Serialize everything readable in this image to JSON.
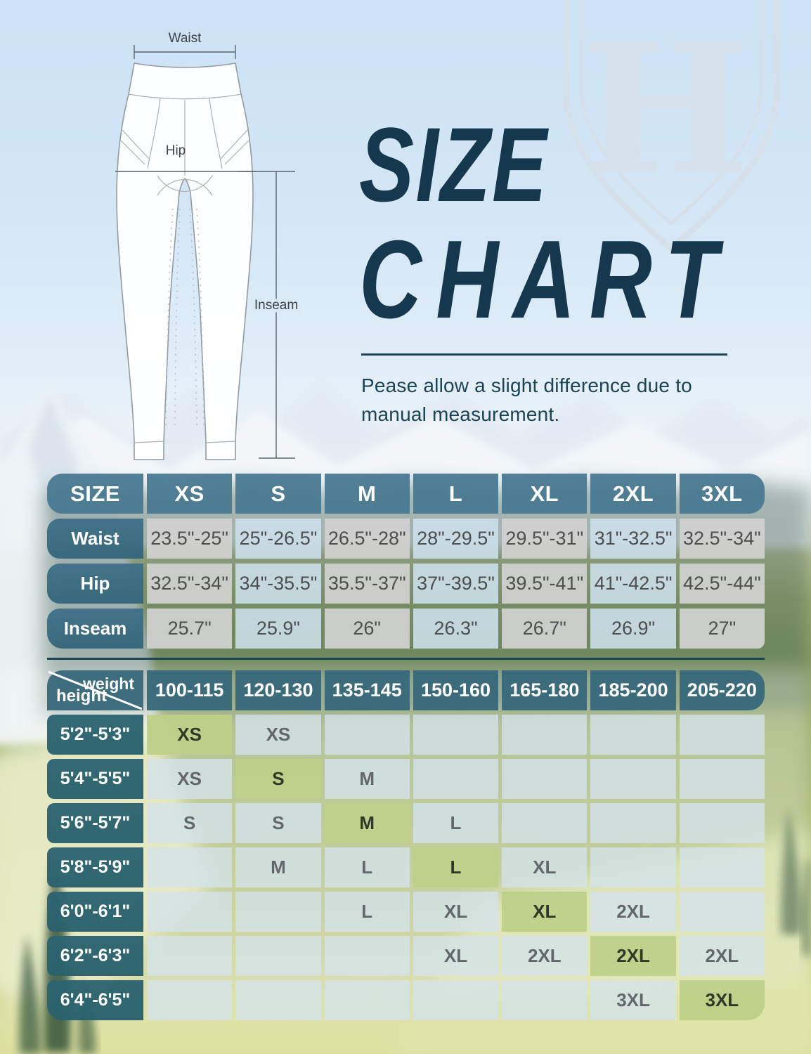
{
  "logo": {
    "letter": "H"
  },
  "diagram": {
    "waist_label": "Waist",
    "hip_label": "Hip",
    "inseam_label": "Inseam"
  },
  "title": {
    "line1": "SIZE",
    "line2": "CHART"
  },
  "note": "Pease allow a slight difference due to manual measurement.",
  "size_table": {
    "header": [
      "SIZE",
      "XS",
      "S",
      "M",
      "L",
      "XL",
      "2XL",
      "3XL"
    ],
    "rows": [
      {
        "label": "Waist",
        "values": [
          "23.5\"-25\"",
          "25\"-26.5\"",
          "26.5\"-28\"",
          "28\"-29.5\"",
          "29.5\"-31\"",
          "31\"-32.5\"",
          "32.5\"-34\""
        ]
      },
      {
        "label": "Hip",
        "values": [
          "32.5\"-34\"",
          "34\"-35.5\"",
          "35.5\"-37\"",
          "37\"-39.5\"",
          "39.5\"-41\"",
          "41\"-42.5\"",
          "42.5\"-44\""
        ]
      },
      {
        "label": "Inseam",
        "values": [
          "25.7\"",
          "25.9\"",
          "26\"",
          "26.3\"",
          "26.7\"",
          "26.9\"",
          "27\""
        ]
      }
    ]
  },
  "fit_table": {
    "corner_top": "weight",
    "corner_bottom": "height",
    "weights": [
      "100-115",
      "120-130",
      "135-145",
      "150-160",
      "165-180",
      "185-200",
      "205-220"
    ],
    "rows": [
      {
        "height": "5'2\"-5'3\"",
        "cells": [
          {
            "v": "XS",
            "hl": true
          },
          {
            "v": "XS"
          },
          {},
          {},
          {},
          {},
          {}
        ]
      },
      {
        "height": "5'4\"-5'5\"",
        "cells": [
          {
            "v": "XS"
          },
          {
            "v": "S",
            "hl": true
          },
          {
            "v": "M"
          },
          {},
          {},
          {},
          {}
        ]
      },
      {
        "height": "5'6\"-5'7\"",
        "cells": [
          {
            "v": "S"
          },
          {
            "v": "S"
          },
          {
            "v": "M",
            "hl": true
          },
          {
            "v": "L"
          },
          {},
          {},
          {}
        ]
      },
      {
        "height": "5'8\"-5'9\"",
        "cells": [
          {},
          {
            "v": "M"
          },
          {
            "v": "L"
          },
          {
            "v": "L",
            "hl": true
          },
          {
            "v": "XL"
          },
          {},
          {}
        ]
      },
      {
        "height": "6'0\"-6'1\"",
        "cells": [
          {},
          {},
          {
            "v": "L"
          },
          {
            "v": "XL"
          },
          {
            "v": "XL",
            "hl": true
          },
          {
            "v": "2XL"
          },
          {}
        ]
      },
      {
        "height": "6'2\"-6'3\"",
        "cells": [
          {},
          {},
          {},
          {
            "v": "XL"
          },
          {
            "v": "2XL"
          },
          {
            "v": "2XL",
            "hl": true
          },
          {
            "v": "2XL"
          }
        ]
      },
      {
        "height": "6'4\"-6'5\"",
        "cells": [
          {},
          {},
          {},
          {},
          {},
          {
            "v": "3XL"
          },
          {
            "v": "3XL",
            "hl": true
          }
        ]
      }
    ]
  },
  "colors": {
    "title_navy": "#16384e",
    "text_navy": "#1d4357",
    "size_header_teal": "#47788f",
    "size_label_teal": "#3a6c84",
    "fit_header_teal": "#37687a",
    "fit_label_teal": "#2c6171",
    "cell_gray": "#d1d1d0",
    "cell_blue": "#cde0ec",
    "fit_cell_blue": "#d3e3ec",
    "highlight_green": "#bed088",
    "grid_gap_white": "#ffffff"
  },
  "chart_data": [
    {
      "type": "table",
      "title": "SIZE CHART",
      "columns": [
        "SIZE",
        "XS",
        "S",
        "M",
        "L",
        "XL",
        "2XL",
        "3XL"
      ],
      "rows": [
        [
          "Waist",
          "23.5\"-25\"",
          "25\"-26.5\"",
          "26.5\"-28\"",
          "28\"-29.5\"",
          "29.5\"-31\"",
          "31\"-32.5\"",
          "32.5\"-34\""
        ],
        [
          "Hip",
          "32.5\"-34\"",
          "34\"-35.5\"",
          "35.5\"-37\"",
          "37\"-39.5\"",
          "39.5\"-41\"",
          "41\"-42.5\"",
          "42.5\"-44\""
        ],
        [
          "Inseam",
          "25.7\"",
          "25.9\"",
          "26\"",
          "26.3\"",
          "26.7\"",
          "26.9\"",
          "27\""
        ]
      ]
    },
    {
      "type": "table",
      "columns": [
        "height\\weight",
        "100-115",
        "120-130",
        "135-145",
        "150-160",
        "165-180",
        "185-200",
        "205-220"
      ],
      "rows": [
        [
          "5'2\"-5'3\"",
          "XS",
          "XS",
          "",
          "",
          "",
          "",
          ""
        ],
        [
          "5'4\"-5'5\"",
          "XS",
          "S",
          "M",
          "",
          "",
          "",
          ""
        ],
        [
          "5'6\"-5'7\"",
          "S",
          "S",
          "M",
          "L",
          "",
          "",
          ""
        ],
        [
          "5'8\"-5'9\"",
          "",
          "M",
          "L",
          "L",
          "XL",
          "",
          ""
        ],
        [
          "6'0\"-6'1\"",
          "",
          "",
          "L",
          "XL",
          "XL",
          "2XL",
          ""
        ],
        [
          "6'2\"-6'3\"",
          "",
          "",
          "",
          "XL",
          "2XL",
          "2XL",
          "2XL"
        ],
        [
          "6'4\"-6'5\"",
          "",
          "",
          "",
          "",
          "",
          "3XL",
          "3XL"
        ]
      ],
      "highlighted_cells": [
        [
          "5'2\"-5'3\"",
          "100-115"
        ],
        [
          "5'4\"-5'5\"",
          "120-130"
        ],
        [
          "5'6\"-5'7\"",
          "135-145"
        ],
        [
          "5'8\"-5'9\"",
          "150-160"
        ],
        [
          "6'0\"-6'1\"",
          "165-180"
        ],
        [
          "6'2\"-6'3\"",
          "185-200"
        ],
        [
          "6'4\"-6'5\"",
          "205-220"
        ]
      ]
    }
  ]
}
